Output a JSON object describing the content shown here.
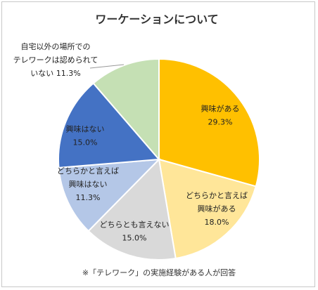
{
  "chart_data": {
    "type": "pie",
    "title": "ワーケーションについて",
    "footnote": "※「テレワーク」の実施経験がある人が回答",
    "slices": [
      {
        "label_lines": [
          "興味がある",
          "29.3%"
        ],
        "value": 29.3,
        "color": "#FFC000"
      },
      {
        "label_lines": [
          "どちらかと言えば",
          "興味がある",
          "18.0%"
        ],
        "value": 18.0,
        "color": "#FFE699"
      },
      {
        "label_lines": [
          "どちらとも言えない",
          "15.0%"
        ],
        "value": 15.0,
        "color": "#D9D9D9"
      },
      {
        "label_lines": [
          "どちらかと言えば",
          "興味はない",
          "11.3%"
        ],
        "value": 11.3,
        "color": "#B4C7E7"
      },
      {
        "label_lines": [
          "興味はない",
          "15.0%"
        ],
        "value": 15.0,
        "color": "#4472C4"
      },
      {
        "label_lines": [
          "自宅以外の場所での",
          "テレワークは認められて",
          "いない 11.3%"
        ],
        "value": 11.3,
        "color": "#C5E0B4"
      }
    ]
  }
}
